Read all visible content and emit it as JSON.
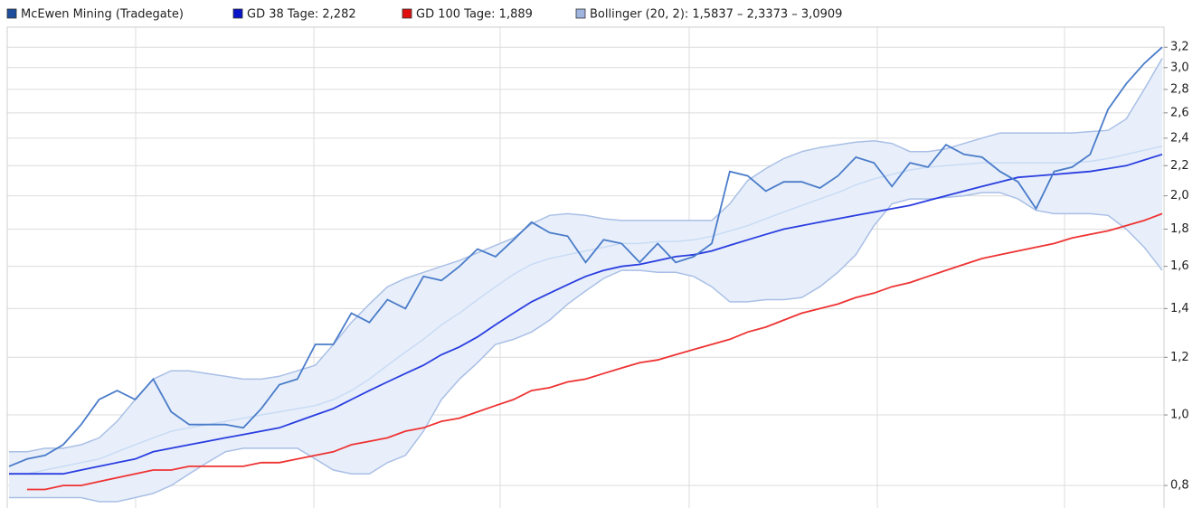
{
  "chart_data": {
    "type": "line",
    "log_scale": true,
    "grid": true,
    "ylim": [
      0.745,
      3.41
    ],
    "yticks": [
      {
        "value": 0.8,
        "label": "0,8"
      },
      {
        "value": 1.0,
        "label": "1,0"
      },
      {
        "value": 1.2,
        "label": "1,2"
      },
      {
        "value": 1.4,
        "label": "1,4"
      },
      {
        "value": 1.6,
        "label": "1,6"
      },
      {
        "value": 1.8,
        "label": "1,8"
      },
      {
        "value": 2.0,
        "label": "2,0"
      },
      {
        "value": 2.2,
        "label": "2,2"
      },
      {
        "value": 2.4,
        "label": "2,4"
      },
      {
        "value": 2.6,
        "label": "2,6"
      },
      {
        "value": 2.8,
        "label": "2,8"
      },
      {
        "value": 3.0,
        "label": "3,0"
      },
      {
        "value": 3.2,
        "label": "3,2"
      }
    ],
    "series": [
      {
        "name": "McEwen Mining (Tradegate)",
        "color": "#4a7cc9",
        "legend_color": "#1f4e9c",
        "values": [
          0.85,
          0.87,
          0.88,
          0.91,
          0.97,
          1.05,
          1.08,
          1.05,
          1.12,
          1.01,
          0.97,
          0.97,
          0.97,
          0.96,
          1.02,
          1.1,
          1.12,
          1.25,
          1.25,
          1.38,
          1.34,
          1.44,
          1.4,
          1.55,
          1.53,
          1.6,
          1.69,
          1.65,
          1.74,
          1.84,
          1.78,
          1.76,
          1.62,
          1.74,
          1.72,
          1.62,
          1.72,
          1.62,
          1.65,
          1.72,
          2.16,
          2.13,
          2.03,
          2.09,
          2.09,
          2.05,
          2.13,
          2.26,
          2.22,
          2.06,
          2.22,
          2.19,
          2.35,
          2.28,
          2.26,
          2.16,
          2.09,
          1.92,
          2.16,
          2.19,
          2.28,
          2.63,
          2.85,
          3.04,
          3.2
        ]
      },
      {
        "name": "GD 38 Tage: 2,282",
        "color": "#2a3de0",
        "legend_color": "#0a14c8",
        "values": [
          0.83,
          0.83,
          0.83,
          0.83,
          0.84,
          0.85,
          0.86,
          0.87,
          0.89,
          0.9,
          0.91,
          0.92,
          0.93,
          0.94,
          0.95,
          0.96,
          0.98,
          1.0,
          1.02,
          1.05,
          1.08,
          1.11,
          1.14,
          1.17,
          1.21,
          1.24,
          1.28,
          1.33,
          1.38,
          1.43,
          1.47,
          1.51,
          1.55,
          1.58,
          1.6,
          1.61,
          1.63,
          1.65,
          1.66,
          1.68,
          1.71,
          1.74,
          1.77,
          1.8,
          1.82,
          1.84,
          1.86,
          1.88,
          1.9,
          1.92,
          1.94,
          1.97,
          2.0,
          2.03,
          2.06,
          2.09,
          2.12,
          2.13,
          2.14,
          2.15,
          2.16,
          2.18,
          2.2,
          2.24,
          2.28
        ]
      },
      {
        "name": "GD 100 Tage: 1,889",
        "color": "#ee3333",
        "legend_color": "#e01010",
        "values": [
          null,
          0.79,
          0.79,
          0.8,
          0.8,
          0.81,
          0.82,
          0.83,
          0.84,
          0.84,
          0.85,
          0.85,
          0.85,
          0.85,
          0.86,
          0.86,
          0.87,
          0.88,
          0.89,
          0.91,
          0.92,
          0.93,
          0.95,
          0.96,
          0.98,
          0.99,
          1.01,
          1.03,
          1.05,
          1.08,
          1.09,
          1.11,
          1.12,
          1.14,
          1.16,
          1.18,
          1.19,
          1.21,
          1.23,
          1.25,
          1.27,
          1.3,
          1.32,
          1.35,
          1.38,
          1.4,
          1.42,
          1.45,
          1.47,
          1.5,
          1.52,
          1.55,
          1.58,
          1.61,
          1.64,
          1.66,
          1.68,
          1.7,
          1.72,
          1.75,
          1.77,
          1.79,
          1.82,
          1.85,
          1.89
        ]
      }
    ],
    "bollinger": {
      "name": "Bollinger (20, 2): 1,5837 – 2,3373 – 3,0909",
      "color": "#a9bfe6",
      "fill": "#e8effa",
      "legend_color": "#a0b4e0",
      "upper": [
        0.89,
        0.89,
        0.9,
        0.9,
        0.91,
        0.93,
        0.98,
        1.05,
        1.12,
        1.15,
        1.15,
        1.14,
        1.13,
        1.12,
        1.12,
        1.13,
        1.15,
        1.17,
        1.25,
        1.34,
        1.42,
        1.5,
        1.54,
        1.57,
        1.6,
        1.63,
        1.67,
        1.71,
        1.75,
        1.83,
        1.88,
        1.89,
        1.88,
        1.86,
        1.85,
        1.85,
        1.85,
        1.85,
        1.85,
        1.85,
        1.95,
        2.1,
        2.18,
        2.25,
        2.3,
        2.33,
        2.35,
        2.37,
        2.38,
        2.36,
        2.3,
        2.3,
        2.32,
        2.36,
        2.4,
        2.44,
        2.44,
        2.44,
        2.44,
        2.44,
        2.45,
        2.46,
        2.55,
        2.8,
        3.09
      ],
      "middle": [
        0.83,
        0.83,
        0.84,
        0.85,
        0.86,
        0.87,
        0.89,
        0.91,
        0.93,
        0.95,
        0.96,
        0.97,
        0.98,
        0.99,
        1.0,
        1.01,
        1.02,
        1.03,
        1.05,
        1.08,
        1.12,
        1.17,
        1.22,
        1.27,
        1.33,
        1.38,
        1.44,
        1.5,
        1.56,
        1.61,
        1.64,
        1.66,
        1.68,
        1.7,
        1.72,
        1.72,
        1.73,
        1.73,
        1.74,
        1.76,
        1.79,
        1.82,
        1.86,
        1.9,
        1.94,
        1.98,
        2.02,
        2.07,
        2.11,
        2.14,
        2.17,
        2.19,
        2.2,
        2.21,
        2.22,
        2.22,
        2.22,
        2.22,
        2.22,
        2.22,
        2.23,
        2.25,
        2.28,
        2.31,
        2.34
      ],
      "lower": [
        0.77,
        0.77,
        0.77,
        0.77,
        0.77,
        0.76,
        0.76,
        0.77,
        0.78,
        0.8,
        0.83,
        0.86,
        0.89,
        0.9,
        0.9,
        0.9,
        0.9,
        0.87,
        0.84,
        0.83,
        0.83,
        0.86,
        0.88,
        0.95,
        1.05,
        1.12,
        1.18,
        1.25,
        1.27,
        1.3,
        1.35,
        1.42,
        1.48,
        1.54,
        1.58,
        1.58,
        1.57,
        1.57,
        1.55,
        1.5,
        1.43,
        1.43,
        1.44,
        1.44,
        1.45,
        1.5,
        1.57,
        1.66,
        1.82,
        1.95,
        1.98,
        1.98,
        1.99,
        2.0,
        2.02,
        2.02,
        1.98,
        1.91,
        1.89,
        1.89,
        1.89,
        1.88,
        1.8,
        1.7,
        1.58
      ]
    }
  }
}
